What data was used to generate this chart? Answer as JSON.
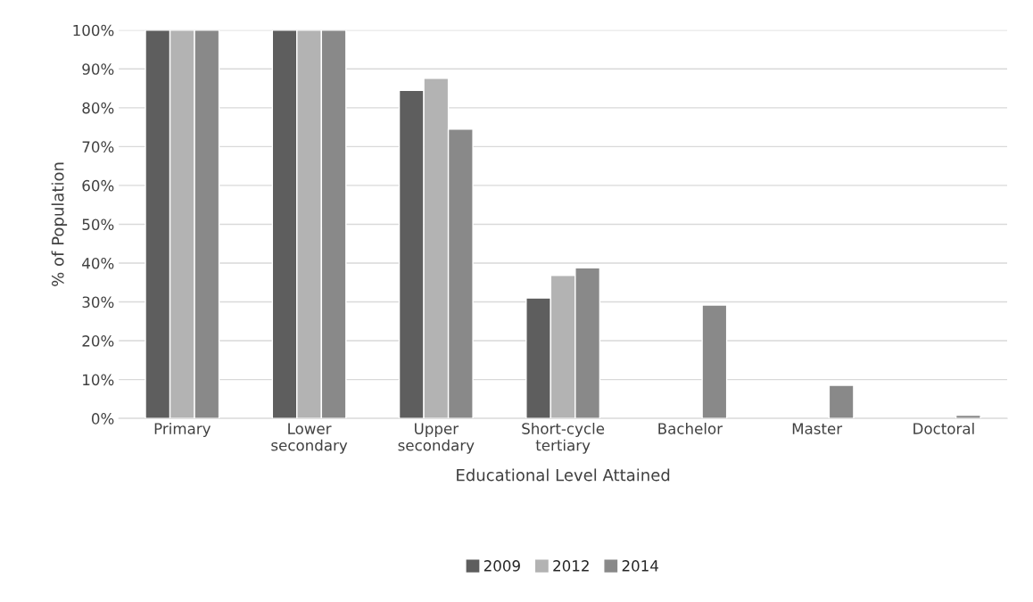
{
  "chart_data": {
    "type": "bar",
    "xlabel": "Educational Level Attained",
    "ylabel": "% of Population",
    "categories": [
      "Primary",
      "Lower\nsecondary",
      "Upper\nsecondary",
      "Short-cycle\ntertiary",
      "Bachelor",
      "Master",
      "Doctoral"
    ],
    "series": [
      {
        "name": "2009",
        "color": "#5e5e5e",
        "values": [
          100,
          100,
          84.5,
          31,
          null,
          null,
          null
        ]
      },
      {
        "name": "2012",
        "color": "#b3b3b3",
        "values": [
          100,
          100,
          87.6,
          36.8,
          null,
          null,
          null
        ]
      },
      {
        "name": "2014",
        "color": "#898989",
        "values": [
          100,
          100,
          74.5,
          38.8,
          29.2,
          8.5,
          0.8
        ]
      }
    ],
    "ylim": [
      0,
      100
    ],
    "yticks": [
      {
        "value": 0,
        "label": "0%"
      },
      {
        "value": 10,
        "label": "10%"
      },
      {
        "value": 20,
        "label": "20%"
      },
      {
        "value": 30,
        "label": "30%"
      },
      {
        "value": 40,
        "label": "40%"
      },
      {
        "value": 50,
        "label": "50%"
      },
      {
        "value": 60,
        "label": "60%"
      },
      {
        "value": 70,
        "label": "70%"
      },
      {
        "value": 80,
        "label": "80%"
      },
      {
        "value": 90,
        "label": "90%"
      },
      {
        "value": 100,
        "label": "100%"
      }
    ],
    "grid": "y",
    "legend": "bottom"
  }
}
